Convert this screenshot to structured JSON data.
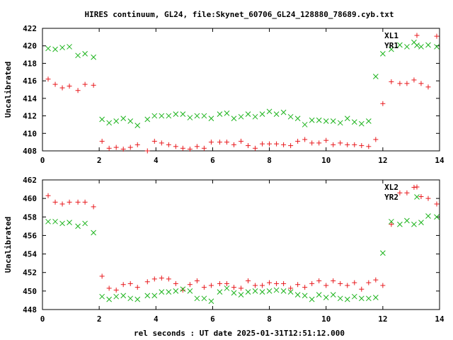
{
  "chart_data": {
    "title": "HIRES continuum, GL24, file:Skynet_60706_GL24_128880_78689.cyb.txt",
    "xlabel": "rel seconds : UT date 2025-01-31T12:51:12.000",
    "colors": {
      "red": "#e8191d",
      "green": "#1cb31c"
    },
    "panels": [
      {
        "type": "scatter",
        "ylabel": "Uncalibrated",
        "xlim": [
          0,
          14
        ],
        "ylim": [
          408,
          422
        ],
        "xticks": [
          "0",
          "2",
          "4",
          "6",
          "8",
          "10",
          "12",
          "14"
        ],
        "yticks": [
          "408",
          "410",
          "412",
          "414",
          "416",
          "418",
          "420",
          "422"
        ],
        "series": [
          {
            "name": "XL1",
            "marker": "plus",
            "color": "#e8191d",
            "x": [
              0.2,
              0.45,
              0.7,
              0.95,
              1.25,
              1.5,
              1.8,
              2.1,
              2.35,
              2.6,
              2.85,
              3.1,
              3.35,
              3.7,
              3.95,
              4.2,
              4.45,
              4.7,
              4.95,
              5.2,
              5.45,
              5.7,
              5.95,
              6.25,
              6.5,
              6.75,
              7.0,
              7.25,
              7.5,
              7.75,
              8.0,
              8.25,
              8.5,
              8.75,
              9.0,
              9.25,
              9.5,
              9.75,
              10.0,
              10.25,
              10.5,
              10.75,
              11.0,
              11.25,
              11.5,
              11.75,
              12.0,
              12.3,
              12.6,
              12.85,
              13.1,
              13.35,
              13.6,
              13.9
            ],
            "y": [
              416.2,
              415.6,
              415.2,
              415.4,
              414.9,
              415.6,
              415.5,
              409.1,
              408.3,
              408.4,
              408.2,
              408.4,
              408.7,
              408.0,
              409.1,
              408.9,
              408.7,
              408.5,
              408.3,
              408.2,
              408.5,
              408.3,
              409.0,
              409.0,
              409.0,
              408.7,
              409.1,
              408.6,
              408.3,
              408.8,
              408.8,
              408.8,
              408.7,
              408.6,
              409.1,
              409.3,
              408.9,
              408.9,
              409.2,
              408.7,
              408.9,
              408.7,
              408.7,
              408.6,
              408.5,
              409.3,
              413.4,
              415.9,
              415.7,
              415.7,
              416.1,
              415.7,
              415.3,
              421.1
            ]
          },
          {
            "name": "YR1",
            "marker": "cross",
            "color": "#1cb31c",
            "x": [
              0.2,
              0.45,
              0.7,
              0.95,
              1.25,
              1.5,
              1.8,
              2.1,
              2.35,
              2.6,
              2.85,
              3.1,
              3.35,
              3.7,
              3.95,
              4.2,
              4.45,
              4.7,
              4.95,
              5.2,
              5.45,
              5.7,
              5.95,
              6.25,
              6.5,
              6.75,
              7.0,
              7.25,
              7.5,
              7.75,
              8.0,
              8.25,
              8.5,
              8.75,
              9.0,
              9.25,
              9.5,
              9.75,
              10.0,
              10.25,
              10.5,
              10.75,
              11.0,
              11.25,
              11.5,
              11.75,
              12.0,
              12.3,
              12.6,
              12.85,
              13.1,
              13.35,
              13.6,
              13.9
            ],
            "y": [
              419.7,
              419.6,
              419.8,
              419.9,
              418.9,
              419.1,
              418.7,
              411.6,
              411.2,
              411.4,
              411.7,
              411.4,
              410.9,
              411.6,
              412.0,
              412.0,
              412.0,
              412.2,
              412.2,
              411.8,
              412.0,
              412.0,
              411.7,
              412.2,
              412.3,
              411.7,
              411.9,
              412.2,
              411.9,
              412.2,
              412.5,
              412.2,
              412.4,
              411.9,
              411.7,
              411.0,
              411.5,
              411.5,
              411.4,
              411.4,
              411.2,
              411.7,
              411.3,
              411.1,
              411.4,
              416.5,
              419.1,
              419.6,
              420.1,
              419.9,
              420.4,
              419.9,
              420.1,
              419.9
            ]
          }
        ]
      },
      {
        "type": "scatter",
        "ylabel": "Uncalibrated",
        "xlim": [
          0,
          14
        ],
        "ylim": [
          448,
          462
        ],
        "xticks": [
          "0",
          "2",
          "4",
          "6",
          "8",
          "10",
          "12",
          "14"
        ],
        "yticks": [
          "448",
          "450",
          "452",
          "454",
          "456",
          "458",
          "460",
          "462"
        ],
        "series": [
          {
            "name": "XL2",
            "marker": "plus",
            "color": "#e8191d",
            "x": [
              0.2,
              0.45,
              0.7,
              0.95,
              1.25,
              1.5,
              1.8,
              2.1,
              2.35,
              2.6,
              2.85,
              3.1,
              3.35,
              3.7,
              3.95,
              4.2,
              4.45,
              4.7,
              4.95,
              5.2,
              5.45,
              5.7,
              5.95,
              6.25,
              6.5,
              6.75,
              7.0,
              7.25,
              7.5,
              7.75,
              8.0,
              8.25,
              8.5,
              8.75,
              9.0,
              9.25,
              9.5,
              9.75,
              10.0,
              10.25,
              10.5,
              10.75,
              11.0,
              11.25,
              11.5,
              11.75,
              12.0,
              12.3,
              12.6,
              12.85,
              13.1,
              13.35,
              13.6,
              13.9
            ],
            "y": [
              460.3,
              459.6,
              459.4,
              459.6,
              459.6,
              459.6,
              459.1,
              451.6,
              450.3,
              450.1,
              450.7,
              450.8,
              450.4,
              451.0,
              451.3,
              451.4,
              451.3,
              450.8,
              450.1,
              450.7,
              451.1,
              450.4,
              450.6,
              450.8,
              450.8,
              450.4,
              450.3,
              451.1,
              450.6,
              450.6,
              450.9,
              450.8,
              450.8,
              450.3,
              450.7,
              450.4,
              450.8,
              451.1,
              450.6,
              451.1,
              450.8,
              450.6,
              450.9,
              450.2,
              450.9,
              451.2,
              450.6,
              457.2,
              460.6,
              460.6,
              461.2,
              460.2,
              460.0,
              459.4
            ]
          },
          {
            "name": "YR2",
            "marker": "cross",
            "color": "#1cb31c",
            "x": [
              0.2,
              0.45,
              0.7,
              0.95,
              1.25,
              1.5,
              1.8,
              2.1,
              2.35,
              2.6,
              2.85,
              3.1,
              3.35,
              3.7,
              3.95,
              4.2,
              4.45,
              4.7,
              4.95,
              5.2,
              5.45,
              5.7,
              5.95,
              6.25,
              6.5,
              6.75,
              7.0,
              7.25,
              7.5,
              7.75,
              8.0,
              8.25,
              8.5,
              8.75,
              9.0,
              9.25,
              9.5,
              9.75,
              10.0,
              10.25,
              10.5,
              10.75,
              11.0,
              11.25,
              11.5,
              11.75,
              12.0,
              12.3,
              12.6,
              12.85,
              13.1,
              13.35,
              13.6,
              13.9
            ],
            "y": [
              457.5,
              457.5,
              457.3,
              457.4,
              457.0,
              457.3,
              456.3,
              449.4,
              449.1,
              449.4,
              449.5,
              449.2,
              449.1,
              449.5,
              449.5,
              449.9,
              449.9,
              450.0,
              450.2,
              450.0,
              449.2,
              449.2,
              448.9,
              449.9,
              450.3,
              449.8,
              449.6,
              449.9,
              450.0,
              449.9,
              450.0,
              450.1,
              450.0,
              449.9,
              449.6,
              449.5,
              449.1,
              449.6,
              449.3,
              449.6,
              449.2,
              449.1,
              449.4,
              449.2,
              449.2,
              449.3,
              454.1,
              457.5,
              457.2,
              457.6,
              457.2,
              457.4,
              458.1,
              458.0
            ]
          }
        ]
      }
    ]
  }
}
